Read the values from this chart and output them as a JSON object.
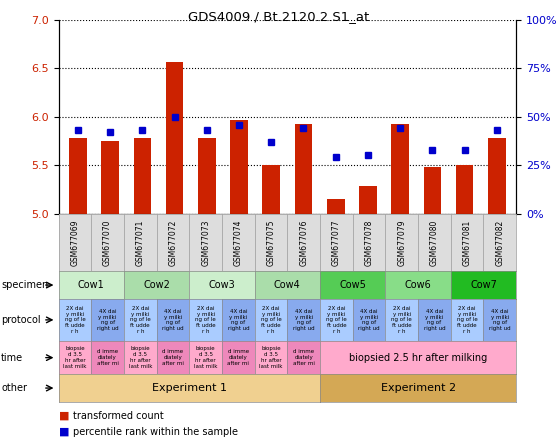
{
  "title": "GDS4009 / Bt.2120.2.S1_at",
  "samples": [
    "GSM677069",
    "GSM677070",
    "GSM677071",
    "GSM677072",
    "GSM677073",
    "GSM677074",
    "GSM677075",
    "GSM677076",
    "GSM677077",
    "GSM677078",
    "GSM677079",
    "GSM677080",
    "GSM677081",
    "GSM677082"
  ],
  "red_values": [
    5.78,
    5.75,
    5.78,
    6.57,
    5.78,
    5.97,
    5.5,
    5.93,
    5.15,
    5.28,
    5.93,
    5.48,
    5.5,
    5.78
  ],
  "blue_values": [
    43,
    42,
    43,
    50,
    43,
    46,
    37,
    44,
    29,
    30,
    44,
    33,
    33,
    43
  ],
  "ylim_left": [
    5.0,
    7.0
  ],
  "ylim_right": [
    0,
    100
  ],
  "yticks_left": [
    5.0,
    5.5,
    6.0,
    6.5,
    7.0
  ],
  "yticks_right": [
    0,
    25,
    50,
    75,
    100
  ],
  "ytick_labels_right": [
    "0%",
    "25%",
    "50%",
    "75%",
    "100%"
  ],
  "bar_color": "#cc2200",
  "dot_color": "#0000cc",
  "specimen_groups": [
    {
      "label": "Cow1",
      "start": 0,
      "end": 2,
      "color": "#cceecc"
    },
    {
      "label": "Cow2",
      "start": 2,
      "end": 4,
      "color": "#aaddaa"
    },
    {
      "label": "Cow3",
      "start": 4,
      "end": 6,
      "color": "#cceecc"
    },
    {
      "label": "Cow4",
      "start": 6,
      "end": 8,
      "color": "#aaddaa"
    },
    {
      "label": "Cow5",
      "start": 8,
      "end": 10,
      "color": "#55cc55"
    },
    {
      "label": "Cow6",
      "start": 10,
      "end": 12,
      "color": "#88dd88"
    },
    {
      "label": "Cow7",
      "start": 12,
      "end": 14,
      "color": "#22bb22"
    }
  ],
  "time_single": "biopsied 2.5 hr after milking",
  "experiment1_color": "#f0d090",
  "experiment2_color": "#d4a855",
  "protocol_color_2x": "#aaccff",
  "protocol_color_4x": "#88aaee",
  "time_color_a": "#ffaacc",
  "time_color_b": "#ee88bb",
  "time_color_single": "#ffaacc",
  "legend_red": "transformed count",
  "legend_blue": "percentile rank within the sample"
}
